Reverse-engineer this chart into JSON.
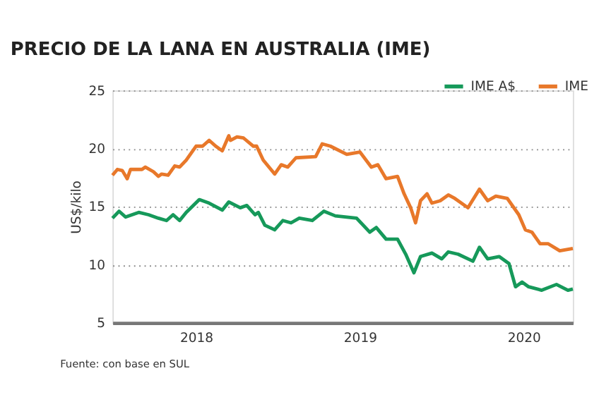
{
  "chart_data": {
    "type": "line",
    "title": "PRECIO DE LA LANA EN AUSTRALIA (IME)",
    "ylabel": "US$/kilo",
    "xlim": [
      2017.49,
      2020.3
    ],
    "xticks": [
      2018,
      2019,
      2020
    ],
    "ylim": [
      5,
      25
    ],
    "yticks": [
      5,
      10,
      15,
      20,
      25
    ],
    "grid": "y",
    "legend": "top right",
    "line_style": "solid",
    "marker": "none",
    "annotations": [
      "Fuente: con base en SUL"
    ],
    "series": [
      {
        "name": "IME A$",
        "color": "#16995a",
        "x": [
          2017.49,
          2017.53,
          2017.57,
          2017.61,
          2017.65,
          2017.71,
          2017.77,
          2017.82,
          2017.86,
          2017.9,
          2017.94,
          2018.02,
          2018.08,
          2018.16,
          2018.2,
          2018.27,
          2018.31,
          2018.36,
          2018.38,
          2018.42,
          2018.48,
          2018.53,
          2018.58,
          2018.63,
          2018.71,
          2018.78,
          2018.85,
          2018.98,
          2019.06,
          2019.1,
          2019.16,
          2019.23,
          2019.28,
          2019.33,
          2019.37,
          2019.44,
          2019.5,
          2019.54,
          2019.6,
          2019.69,
          2019.73,
          2019.78,
          2019.85,
          2019.91,
          2019.95,
          2019.99,
          2020.03,
          2020.11,
          2020.2,
          2020.27,
          2020.3
        ],
        "values": [
          14.0,
          14.6,
          14.1,
          14.3,
          14.5,
          14.3,
          14.0,
          13.8,
          14.3,
          13.8,
          14.5,
          15.6,
          15.3,
          14.7,
          15.4,
          14.9,
          15.1,
          14.3,
          14.5,
          13.4,
          13.0,
          13.8,
          13.6,
          14.0,
          13.8,
          14.6,
          14.2,
          14.0,
          12.8,
          13.2,
          12.2,
          12.2,
          10.9,
          9.3,
          10.7,
          11.0,
          10.5,
          11.1,
          10.9,
          10.3,
          11.5,
          10.5,
          10.7,
          10.1,
          8.1,
          8.5,
          8.1,
          7.8,
          8.3,
          7.8,
          7.9
        ]
      },
      {
        "name": "IME",
        "color": "#e8782a",
        "x": [
          2017.49,
          2017.52,
          2017.55,
          2017.58,
          2017.6,
          2017.67,
          2017.69,
          2017.74,
          2017.77,
          2017.79,
          2017.83,
          2017.87,
          2017.9,
          2017.94,
          2018.0,
          2018.04,
          2018.08,
          2018.12,
          2018.16,
          2018.2,
          2018.21,
          2018.25,
          2018.29,
          2018.35,
          2018.37,
          2018.41,
          2018.48,
          2018.52,
          2018.56,
          2018.61,
          2018.73,
          2018.77,
          2018.82,
          2018.92,
          2019.0,
          2019.07,
          2019.11,
          2019.16,
          2019.23,
          2019.27,
          2019.31,
          2019.34,
          2019.37,
          2019.41,
          2019.44,
          2019.49,
          2019.54,
          2019.58,
          2019.66,
          2019.73,
          2019.78,
          2019.83,
          2019.9,
          2019.97,
          2020.01,
          2020.05,
          2020.1,
          2020.15,
          2020.22,
          2020.3
        ],
        "values": [
          17.7,
          18.2,
          18.1,
          17.4,
          18.2,
          18.2,
          18.4,
          18.0,
          17.6,
          17.8,
          17.7,
          18.5,
          18.4,
          19.0,
          20.2,
          20.2,
          20.7,
          20.2,
          19.8,
          21.1,
          20.7,
          21.0,
          20.9,
          20.2,
          20.2,
          19.0,
          17.8,
          18.6,
          18.4,
          19.2,
          19.3,
          20.4,
          20.2,
          19.5,
          19.7,
          18.4,
          18.6,
          17.4,
          17.6,
          16.1,
          14.9,
          13.6,
          15.5,
          16.1,
          15.3,
          15.5,
          16.0,
          15.7,
          14.9,
          16.5,
          15.5,
          15.9,
          15.7,
          14.3,
          13.0,
          12.8,
          11.8,
          11.8,
          11.2,
          11.4
        ]
      }
    ]
  }
}
